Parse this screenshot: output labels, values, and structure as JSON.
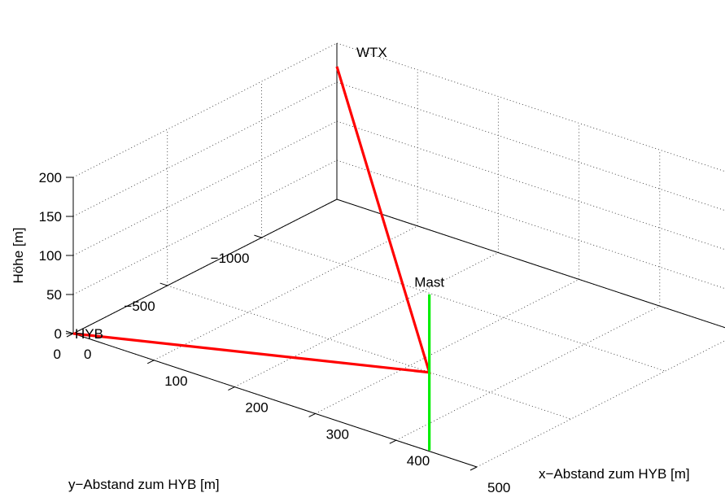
{
  "chart_data": {
    "type": "line3d",
    "title": "",
    "xlabel": "x−Abstand zum HYB [m]",
    "ylabel": "y−Abstand zum HYB [m]",
    "zlabel": "Höhe [m]",
    "xlim": [
      0,
      500
    ],
    "ylim": [
      -1400,
      0
    ],
    "zlim": [
      0,
      200
    ],
    "x_ticks": [
      "0",
      "100",
      "200",
      "300",
      "400",
      "500"
    ],
    "y_ticks": [
      "0",
      "−500",
      "−1000"
    ],
    "z_ticks": [
      "0",
      "50",
      "100",
      "150",
      "200"
    ],
    "grid": true,
    "series": [
      {
        "color": "#ff0000",
        "points": [
          {
            "x": 0,
            "y": 0,
            "z": 0
          },
          {
            "x": 440,
            "y": -5,
            "z": 100
          },
          {
            "x": 0,
            "y": -1400,
            "z": 170
          }
        ]
      },
      {
        "color": "#00ee00",
        "points": [
          {
            "x": 440,
            "y": -5,
            "z": 0
          },
          {
            "x": 440,
            "y": -5,
            "z": 200
          }
        ]
      }
    ],
    "annotations": [
      {
        "text": "HYB",
        "x": 0,
        "y": 0,
        "z": 0
      },
      {
        "text": "WTX",
        "x": 0,
        "y": -1400,
        "z": 170
      },
      {
        "text": "Mast",
        "x": 440,
        "y": -5,
        "z": 200
      }
    ]
  }
}
